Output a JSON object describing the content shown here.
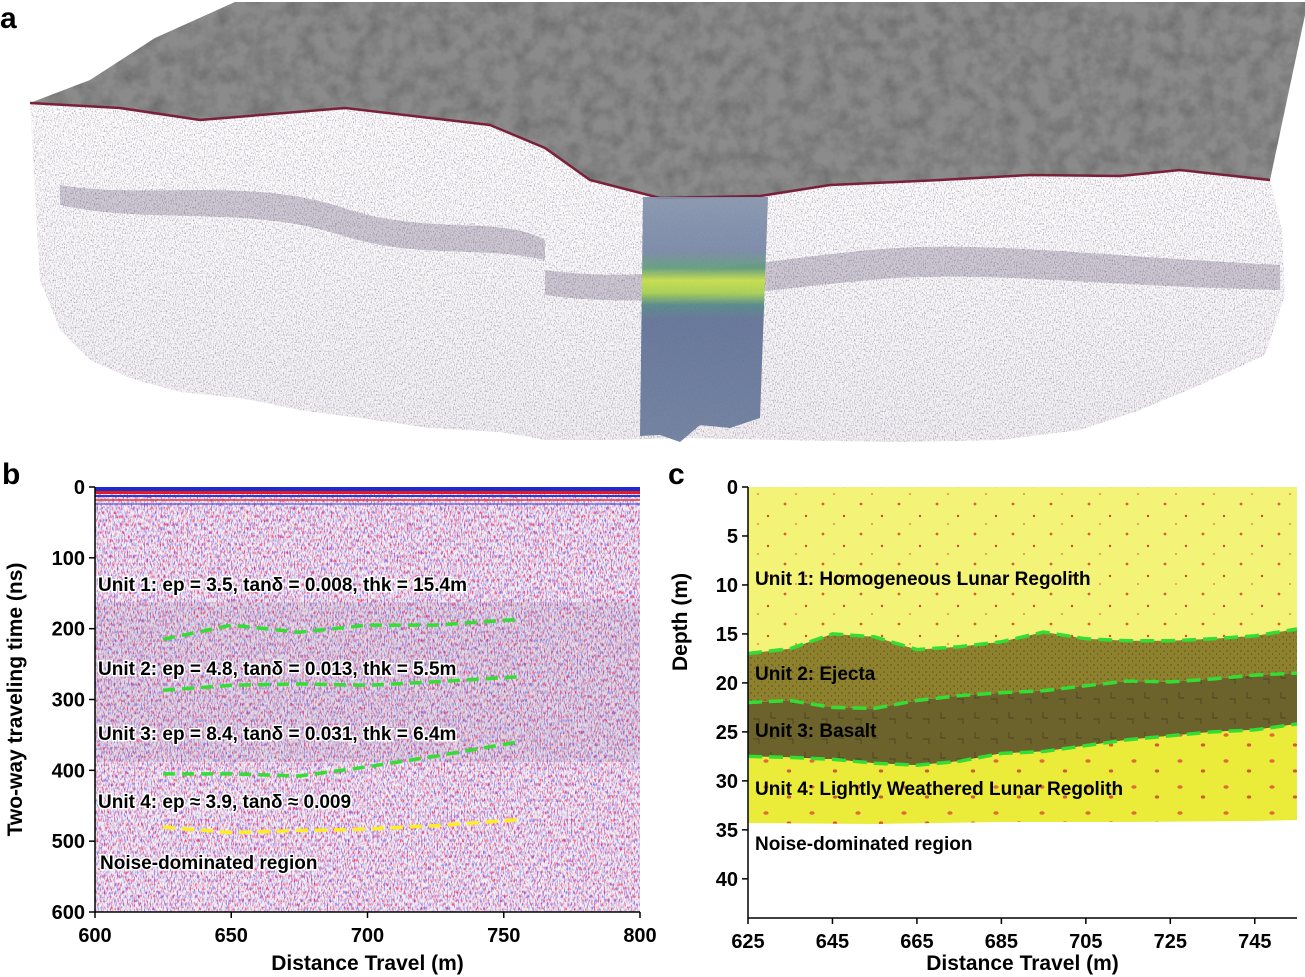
{
  "panel_a": {
    "letter": "a"
  },
  "panel_b": {
    "letter": "b",
    "annotations": [
      "Unit 1: ep = 3.5, tanδ = 0.008, thk = 15.4m",
      "Unit 2: ep = 4.8, tanδ = 0.013, thk = 5.5m",
      "Unit 3: ep = 8.4, tanδ = 0.031, thk = 6.4m",
      "Unit 4: ep ≈ 3.9, tanδ ≈ 0.009",
      "Noise-dominated region"
    ]
  },
  "panel_c": {
    "letter": "c",
    "annotations": [
      "Unit 1: Homogeneous Lunar Regolith",
      "Unit 2: Ejecta",
      "Unit 3: Basalt",
      "Unit 4: Lightly Weathered Lunar Regolith",
      "Noise-dominated region"
    ]
  },
  "colors": {
    "boundary_green": "#33dd33",
    "boundary_yellow": "#ffee22",
    "unit1": "#f3f378",
    "unit2": "#8d812e",
    "unit3": "#6b622c",
    "unit4": "#ebec3a"
  },
  "chart_data": [
    {
      "type": "heatmap",
      "xlabel": "Distance Travel (m)",
      "ylabel": "Two-way traveling time (ns)",
      "xlim": [
        600,
        800
      ],
      "ylim": [
        600,
        0
      ],
      "xticks": [
        "600",
        "650",
        "700",
        "750",
        "800"
      ],
      "yticks": [
        "0",
        "100",
        "200",
        "300",
        "400",
        "500",
        "600"
      ],
      "boundaries": [
        {
          "x": [
            625,
            650,
            675,
            700,
            725,
            755
          ],
          "y": [
            215,
            195,
            205,
            195,
            195,
            187
          ]
        },
        {
          "x": [
            625,
            650,
            675,
            700,
            725,
            755
          ],
          "y": [
            287,
            280,
            278,
            280,
            275,
            268
          ]
        },
        {
          "x": [
            625,
            650,
            675,
            700,
            725,
            755
          ],
          "y": [
            405,
            405,
            408,
            395,
            380,
            360
          ]
        },
        {
          "x": [
            625,
            650,
            675,
            700,
            725,
            755
          ],
          "y": [
            480,
            488,
            485,
            483,
            478,
            470
          ]
        }
      ]
    },
    {
      "type": "area",
      "xlabel": "Distance Travel (m)",
      "ylabel": "Depth (m)",
      "xlim": [
        625,
        755
      ],
      "ylim": [
        44,
        0
      ],
      "xticks": [
        "625",
        "645",
        "665",
        "685",
        "705",
        "725",
        "745"
      ],
      "yticks": [
        "0",
        "5",
        "10",
        "15",
        "20",
        "25",
        "30",
        "35",
        "40"
      ],
      "boundaries": [
        {
          "x": [
            625,
            635,
            645,
            655,
            665,
            675,
            685,
            695,
            705,
            715,
            725,
            735,
            745,
            755
          ],
          "y": [
            17,
            16.5,
            15,
            15.3,
            16.6,
            16.3,
            15.8,
            14.8,
            15.5,
            15.7,
            15.7,
            15.5,
            15.2,
            14.5
          ]
        },
        {
          "x": [
            625,
            635,
            645,
            655,
            665,
            675,
            685,
            695,
            705,
            715,
            725,
            735,
            745,
            755
          ],
          "y": [
            22,
            21.8,
            22.5,
            22.6,
            21.8,
            21.3,
            21,
            20.8,
            20.3,
            19.8,
            19.9,
            19.6,
            19.2,
            19
          ]
        },
        {
          "x": [
            625,
            635,
            645,
            655,
            665,
            675,
            685,
            695,
            705,
            715,
            725,
            735,
            745,
            755
          ],
          "y": [
            27.5,
            27.6,
            27.8,
            28.2,
            28.4,
            28.0,
            27.2,
            27.0,
            26.4,
            25.8,
            25.4,
            25.0,
            24.8,
            24.2
          ]
        },
        {
          "x": [
            625,
            655,
            685,
            715,
            745,
            755
          ],
          "y": [
            34.3,
            34.4,
            34.2,
            34.2,
            34.1,
            34.0
          ]
        }
      ]
    }
  ]
}
